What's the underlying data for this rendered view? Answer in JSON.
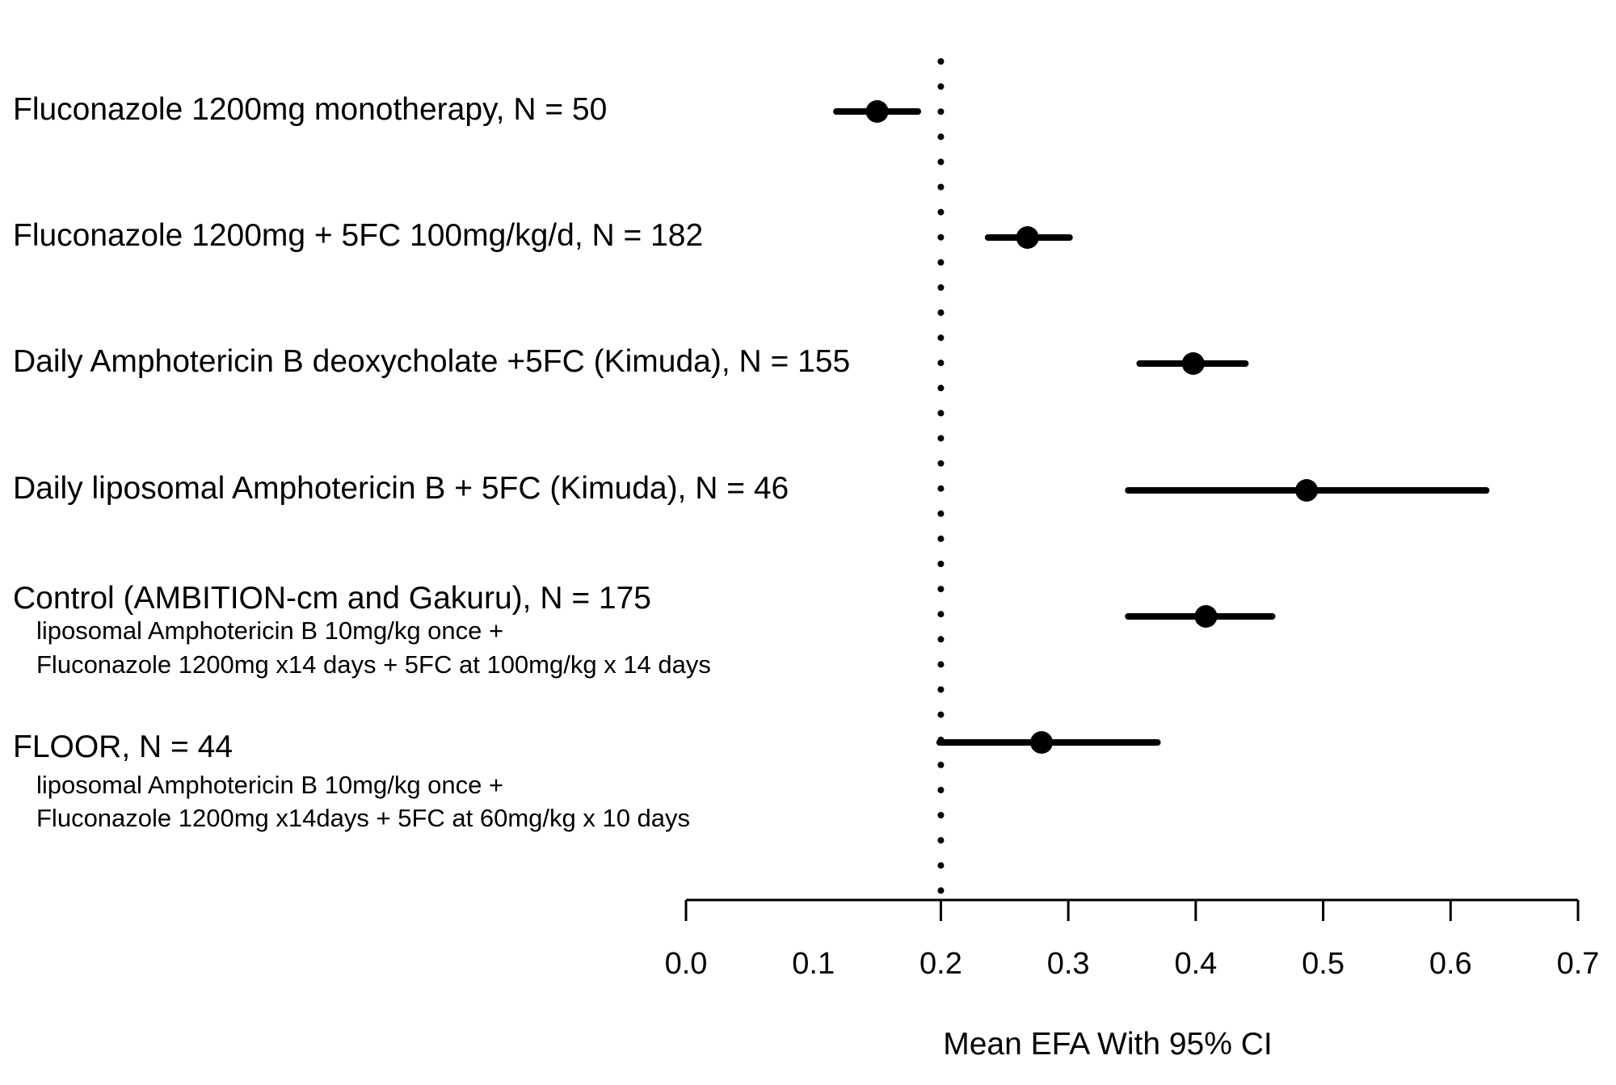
{
  "chart_data": {
    "type": "forest",
    "title": "",
    "xlabel": "Mean EFA With 95% CI",
    "ylabel": "",
    "xlim": [
      0.0,
      0.7
    ],
    "xticks": [
      "0.0",
      "0.1",
      "0.2",
      "0.3",
      "0.4",
      "0.5",
      "0.6",
      "0.7"
    ],
    "reference_line": {
      "x": 0.2,
      "style": "dotted"
    },
    "grid": false,
    "rows": [
      {
        "label": "Fluconazole 1200mg monotherapy, N = 50",
        "sublabels": [],
        "mean": 0.15,
        "lower": 0.118,
        "upper": 0.182
      },
      {
        "label": "Fluconazole 1200mg + 5FC 100mg/kg/d, N = 182",
        "sublabels": [],
        "mean": 0.268,
        "lower": 0.237,
        "upper": 0.301
      },
      {
        "label": "Daily Amphotericin B deoxycholate +5FC (Kimuda), N = 155",
        "sublabels": [],
        "mean": 0.398,
        "lower": 0.356,
        "upper": 0.439
      },
      {
        "label": "Daily liposomal Amphotericin B + 5FC (Kimuda), N = 46",
        "sublabels": [],
        "mean": 0.487,
        "lower": 0.347,
        "upper": 0.628
      },
      {
        "label": "Control (AMBITION-cm and Gakuru), N = 175",
        "sublabels": [
          "liposomal Amphotericin B 10mg/kg once +",
          "Fluconazole 1200mg x14 days + 5FC at 100mg/kg x 14 days"
        ],
        "mean": 0.408,
        "lower": 0.347,
        "upper": 0.46
      },
      {
        "label": "FLOOR, N = 44",
        "sublabels": [
          "liposomal Amphotericin B 10mg/kg once +",
          "Fluconazole 1200mg x14days + 5FC at 60mg/kg x 10 days"
        ],
        "mean": 0.279,
        "lower": 0.199,
        "upper": 0.37
      }
    ],
    "colors": {
      "marks": "#000000",
      "background": "#ffffff"
    }
  }
}
